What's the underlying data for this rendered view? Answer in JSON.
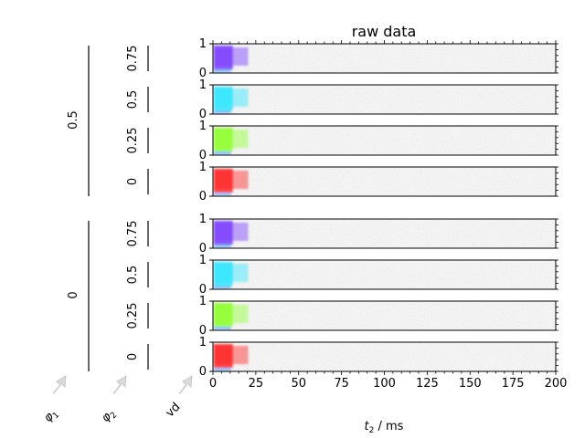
{
  "chart_data": {
    "type": "heatmap",
    "title": "raw data",
    "xlabel_var": "t",
    "xlabel_sub": "2",
    "xlabel_unit": " / ms",
    "xlim": [
      0,
      200
    ],
    "x_ticks": [
      "0",
      "25",
      "50",
      "75",
      "100",
      "125",
      "150",
      "175",
      "200"
    ],
    "ylim": [
      0,
      1
    ],
    "y_ticks": [
      "0",
      "1"
    ],
    "dimension_labels": {
      "phi1_var": "φ",
      "phi1_sub": "1",
      "phi2_var": "φ",
      "phi2_sub": "2",
      "vd": "vd"
    },
    "phi1_groups": [
      "0.5",
      "0"
    ],
    "phi2_values": [
      "0.75",
      "0.5",
      "0.25",
      "0"
    ],
    "signal_extent_ms": [
      0,
      20
    ],
    "panel_colors": {
      "0.75": "#7a3cff",
      "0.5": "#2ee6ff",
      "0.25": "#8dff2e",
      "0": "#ff2424"
    },
    "grid": false
  }
}
